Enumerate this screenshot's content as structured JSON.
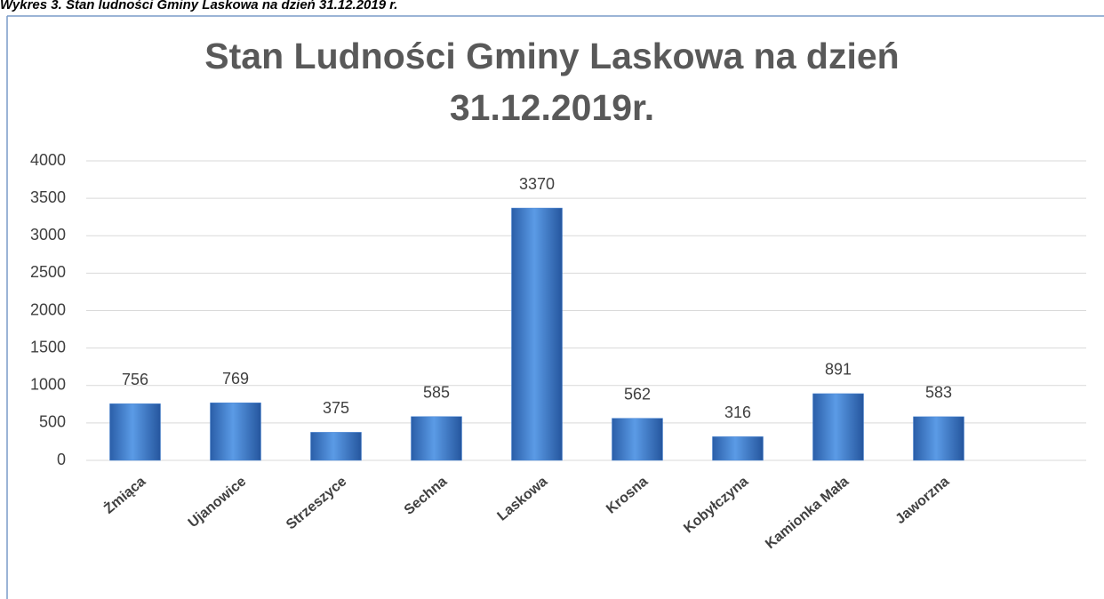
{
  "caption": "Wykres 3. Stan ludności Gminy Laskowa na dzień 31.12.2019 r.",
  "chart_data": {
    "type": "bar",
    "title": [
      "Stan Ludności Gminy Laskowa na dzień",
      "31.12.2019r."
    ],
    "categories": [
      "Żmiąca",
      "Ujanowice",
      "Strzeszyce",
      "Sechna",
      "Laskowa",
      "Krosna",
      "Kobyłczyna",
      "Kamionka Mała",
      "Jaworzna"
    ],
    "values": [
      756,
      769,
      375,
      585,
      3370,
      562,
      316,
      891,
      583
    ],
    "color": "#4a86d4",
    "ylim": [
      0,
      4000
    ],
    "yticks": [
      0,
      500,
      1000,
      1500,
      2000,
      2500,
      3000,
      3500,
      4000
    ],
    "grid": true
  }
}
